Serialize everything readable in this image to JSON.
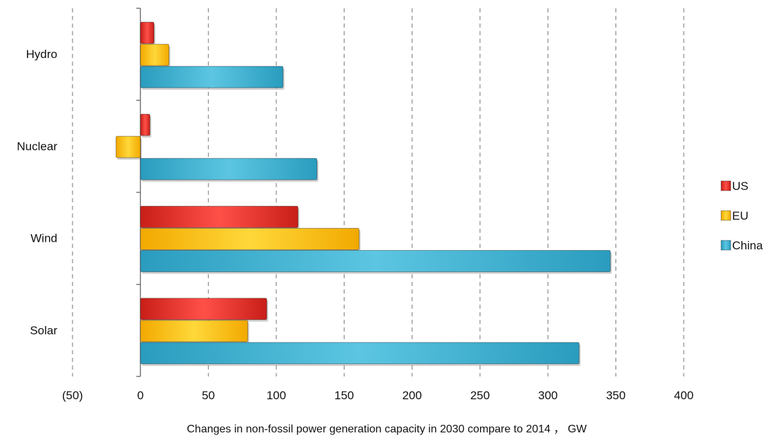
{
  "chart_data": {
    "type": "bar",
    "orientation": "horizontal",
    "categories": [
      "Solar",
      "Wind",
      "Nuclear",
      "Hydro"
    ],
    "series": [
      {
        "name": "US",
        "values": [
          93,
          116,
          7,
          10
        ],
        "color": "#e8332a"
      },
      {
        "name": "EU",
        "values": [
          79,
          161,
          -18,
          21
        ],
        "color": "#ffc000"
      },
      {
        "name": "China",
        "values": [
          323,
          346,
          130,
          105
        ],
        "color": "#3fb3d3"
      }
    ],
    "xlabel": "Changes in non-fossil power generation capacity in 2030 compare to 2014 ， GW",
    "ylabel": "",
    "xlim": [
      -50,
      400
    ],
    "xticks": [
      -50,
      0,
      50,
      100,
      150,
      200,
      250,
      300,
      350,
      400
    ],
    "xtick_labels": [
      "(50)",
      "0",
      "50",
      "100",
      "150",
      "200",
      "250",
      "300",
      "350",
      "400"
    ],
    "negative_tick_color": "#ff0000",
    "grid": "vertical dashed",
    "legend": "right"
  }
}
